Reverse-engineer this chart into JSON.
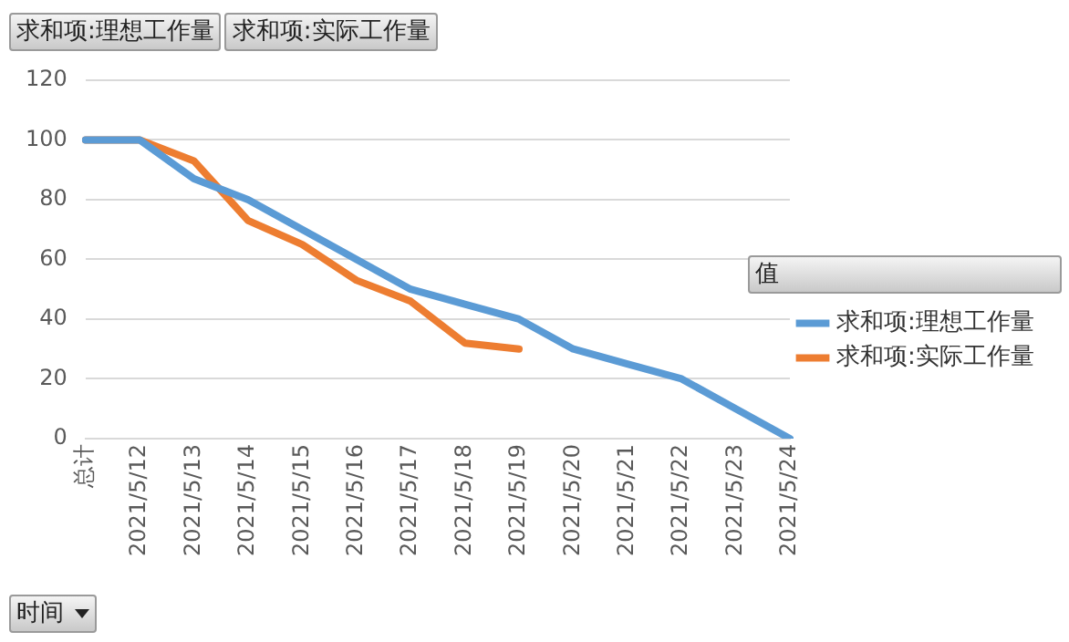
{
  "chart_data": {
    "type": "line",
    "xlabel": "时间",
    "legend_title": "值",
    "categories": [
      "总计",
      "2021/5/12",
      "2021/5/13",
      "2021/5/14",
      "2021/5/15",
      "2021/5/16",
      "2021/5/17",
      "2021/5/18",
      "2021/5/19",
      "2021/5/20",
      "2021/5/21",
      "2021/5/22",
      "2021/5/23",
      "2021/5/24"
    ],
    "series": [
      {
        "name": "求和项:理想工作量",
        "color": "#5b9bd5",
        "values": [
          100,
          100,
          87,
          80,
          70,
          60,
          50,
          45,
          40,
          30,
          25,
          20,
          10,
          0
        ]
      },
      {
        "name": "求和项:实际工作量",
        "color": "#ed7d31",
        "values": [
          100,
          100,
          93,
          73,
          65,
          53,
          46,
          32,
          30,
          null,
          null,
          null,
          null,
          null
        ]
      }
    ],
    "ylim": [
      0,
      120
    ],
    "yticks": [
      0,
      20,
      40,
      60,
      80,
      100,
      120
    ],
    "grid": "y",
    "legend": "right",
    "marker": "none",
    "line_style": "solid"
  }
}
